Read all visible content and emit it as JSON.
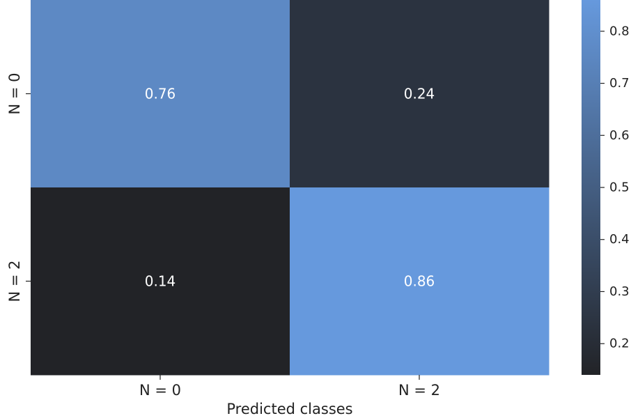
{
  "chart_data": {
    "type": "heatmap",
    "title": "",
    "xlabel": "Predicted classes",
    "ylabel": "",
    "x_categories": [
      "N = 0",
      "N = 2"
    ],
    "y_categories": [
      "N = 0",
      "N = 2"
    ],
    "values": [
      [
        0.76,
        0.24
      ],
      [
        0.14,
        0.86
      ]
    ],
    "value_labels": [
      [
        "0.76",
        "0.24"
      ],
      [
        "0.14",
        "0.86"
      ]
    ],
    "colorbar": {
      "min": 0.14,
      "max": 0.86,
      "ticks": [
        0.2,
        0.3,
        0.4,
        0.5,
        0.6,
        0.7,
        0.8
      ],
      "tick_labels": [
        "0.2",
        "0.3",
        "0.4",
        "0.5",
        "0.6",
        "0.7",
        "0.8"
      ],
      "color_low": "#222327",
      "color_high": "#6699dd"
    },
    "annotation_color": "#ffffff"
  }
}
